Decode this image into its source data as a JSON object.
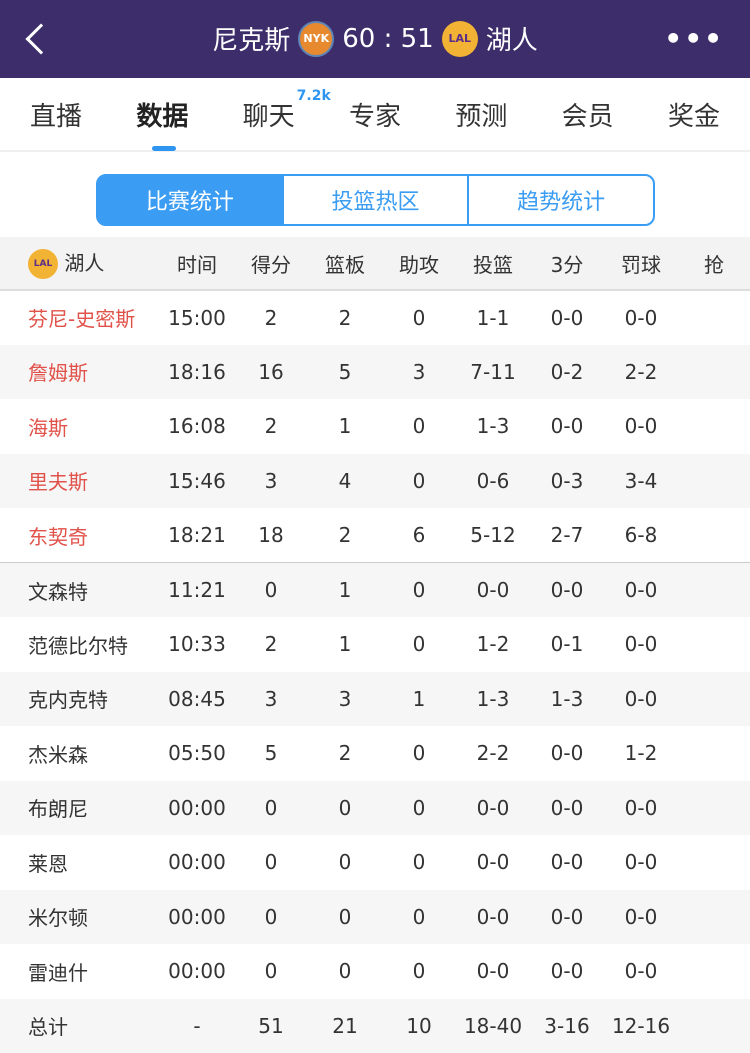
{
  "header": {
    "home": "尼克斯",
    "home_logo": "NYK",
    "score": "60 : 51",
    "away_logo": "LAL",
    "away": "湖人"
  },
  "tabs": [
    {
      "label": "直播"
    },
    {
      "label": "数据"
    },
    {
      "label": "聊天",
      "badge": "7.2k"
    },
    {
      "label": "专家"
    },
    {
      "label": "预测"
    },
    {
      "label": "会员"
    },
    {
      "label": "奖金"
    }
  ],
  "segments": [
    "比赛统计",
    "投篮热区",
    "趋势统计"
  ],
  "table": {
    "team_logo": "LAL",
    "team": "湖人",
    "columns": [
      "时间",
      "得分",
      "篮板",
      "助攻",
      "投篮",
      "3分",
      "罚球",
      "抢"
    ],
    "rows": [
      [
        "芬尼-史密斯",
        "15:00",
        "2",
        "2",
        "0",
        "1-1",
        "0-0",
        "0-0"
      ],
      [
        "詹姆斯",
        "18:16",
        "16",
        "5",
        "3",
        "7-11",
        "0-2",
        "2-2"
      ],
      [
        "海斯",
        "16:08",
        "2",
        "1",
        "0",
        "1-3",
        "0-0",
        "0-0"
      ],
      [
        "里夫斯",
        "15:46",
        "3",
        "4",
        "0",
        "0-6",
        "0-3",
        "3-4"
      ],
      [
        "东契奇",
        "18:21",
        "18",
        "2",
        "6",
        "5-12",
        "2-7",
        "6-8"
      ],
      [
        "文森特",
        "11:21",
        "0",
        "1",
        "0",
        "0-0",
        "0-0",
        "0-0"
      ],
      [
        "范德比尔特",
        "10:33",
        "2",
        "1",
        "0",
        "1-2",
        "0-1",
        "0-0"
      ],
      [
        "克内克特",
        "08:45",
        "3",
        "3",
        "1",
        "1-3",
        "1-3",
        "0-0"
      ],
      [
        "杰米森",
        "05:50",
        "5",
        "2",
        "0",
        "2-2",
        "0-0",
        "1-2"
      ],
      [
        "布朗尼",
        "00:00",
        "0",
        "0",
        "0",
        "0-0",
        "0-0",
        "0-0"
      ],
      [
        "莱恩",
        "00:00",
        "0",
        "0",
        "0",
        "0-0",
        "0-0",
        "0-0"
      ],
      [
        "米尔顿",
        "00:00",
        "0",
        "0",
        "0",
        "0-0",
        "0-0",
        "0-0"
      ],
      [
        "雷迪什",
        "00:00",
        "0",
        "0",
        "0",
        "0-0",
        "0-0",
        "0-0"
      ],
      [
        "总计",
        "-",
        "51",
        "21",
        "10",
        "18-40",
        "3-16",
        "12-16"
      ]
    ]
  },
  "colors": {
    "header_bg": "#3d2e6b",
    "accent": "#3a9cf2",
    "starter": "#e0524a"
  }
}
